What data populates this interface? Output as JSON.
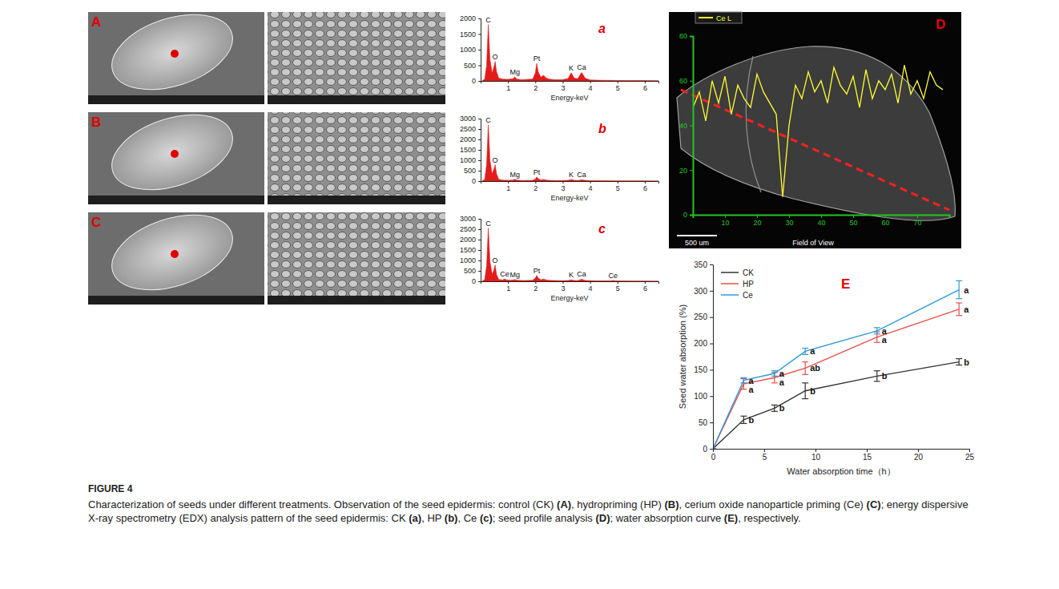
{
  "figure": {
    "label": "FIGURE 4",
    "caption": [
      {
        "text": "Characterization of seeds under different treatments. Observation of the seed epidermis: control (CK) ",
        "bold": false
      },
      {
        "text": "(A)",
        "bold": true
      },
      {
        "text": ", hydropriming (HP) ",
        "bold": false
      },
      {
        "text": "(B)",
        "bold": true
      },
      {
        "text": ", cerium oxide nanoparticle priming (Ce) ",
        "bold": false
      },
      {
        "text": "(C)",
        "bold": true
      },
      {
        "text": "; energy dispersive X-ray spectrometry (EDX) analysis pattern of the seed epidermis: CK ",
        "bold": false
      },
      {
        "text": "(a)",
        "bold": true
      },
      {
        "text": ", HP ",
        "bold": false
      },
      {
        "text": "(b)",
        "bold": true
      },
      {
        "text": ", Ce ",
        "bold": false
      },
      {
        "text": "(c)",
        "bold": true
      },
      {
        "text": "; seed profile analysis ",
        "bold": false
      },
      {
        "text": "(D)",
        "bold": true
      },
      {
        "text": "; water absorption curve ",
        "bold": false
      },
      {
        "text": "(E)",
        "bold": true
      },
      {
        "text": ", respectively.",
        "bold": false
      }
    ]
  },
  "images": [
    {
      "panel": "A"
    },
    {
      "panel": "B"
    },
    {
      "panel": "C"
    }
  ],
  "chart_data": [
    {
      "type": "area",
      "panel": "a",
      "color": "#e31b1b",
      "x_label": "Energy-keV",
      "x": [
        0.05,
        0.15,
        0.22,
        0.28,
        0.34,
        0.42,
        0.48,
        0.53,
        0.58,
        0.66,
        0.8,
        1.0,
        1.18,
        1.25,
        1.32,
        1.5,
        1.9,
        2.0,
        2.05,
        2.1,
        2.2,
        2.3,
        2.4,
        2.5,
        2.7,
        3.0,
        3.2,
        3.31,
        3.42,
        3.55,
        3.69,
        3.82,
        4.0,
        4.5,
        5.0,
        5.5,
        6.0,
        6.5
      ],
      "values": [
        0,
        60,
        500,
        1800,
        700,
        250,
        420,
        620,
        300,
        90,
        60,
        50,
        70,
        130,
        60,
        40,
        60,
        250,
        560,
        300,
        120,
        180,
        90,
        60,
        40,
        40,
        80,
        260,
        90,
        70,
        270,
        90,
        30,
        20,
        15,
        10,
        10,
        5
      ],
      "xlim": [
        0,
        6.5
      ],
      "xticks": [
        1,
        2,
        3,
        4,
        5,
        6
      ],
      "ylim": [
        0,
        2000
      ],
      "yticks": [
        0,
        500,
        1000,
        1500,
        2000
      ],
      "annotations": [
        {
          "text": "C",
          "x": 0.28,
          "y": 1800
        },
        {
          "text": "O",
          "x": 0.53,
          "y": 620
        },
        {
          "text": "Mg",
          "x": 1.25,
          "y": 130
        },
        {
          "text": "Pt",
          "x": 2.05,
          "y": 560
        },
        {
          "text": "K",
          "x": 3.31,
          "y": 260
        },
        {
          "text": "Ca",
          "x": 3.69,
          "y": 270
        }
      ]
    },
    {
      "type": "area",
      "panel": "b",
      "color": "#e31b1b",
      "x_label": "Energy-keV",
      "x": [
        0.05,
        0.15,
        0.22,
        0.28,
        0.34,
        0.42,
        0.48,
        0.53,
        0.58,
        0.66,
        0.8,
        1.0,
        1.18,
        1.25,
        1.32,
        1.5,
        1.9,
        2.0,
        2.05,
        2.1,
        2.2,
        2.3,
        2.4,
        2.5,
        2.7,
        3.0,
        3.2,
        3.31,
        3.42,
        3.55,
        3.69,
        3.82,
        4.0,
        4.5,
        5.0,
        5.5,
        6.0,
        6.5
      ],
      "values": [
        0,
        80,
        800,
        2700,
        1000,
        350,
        550,
        780,
        350,
        90,
        50,
        40,
        50,
        90,
        50,
        30,
        40,
        100,
        200,
        120,
        60,
        80,
        50,
        40,
        30,
        30,
        40,
        80,
        40,
        30,
        60,
        40,
        20,
        15,
        10,
        8,
        6,
        4
      ],
      "xlim": [
        0,
        6.5
      ],
      "xticks": [
        1,
        2,
        3,
        4,
        5,
        6
      ],
      "ylim": [
        0,
        3000
      ],
      "yticks": [
        0,
        500,
        1000,
        1500,
        2000,
        2500,
        3000
      ],
      "annotations": [
        {
          "text": "C",
          "x": 0.28,
          "y": 2700
        },
        {
          "text": "O",
          "x": 0.53,
          "y": 780
        },
        {
          "text": "Mg",
          "x": 1.25,
          "y": 90
        },
        {
          "text": "Pt",
          "x": 2.05,
          "y": 200
        },
        {
          "text": "K",
          "x": 3.31,
          "y": 80
        },
        {
          "text": "Ca",
          "x": 3.69,
          "y": 60
        }
      ]
    },
    {
      "type": "area",
      "panel": "c",
      "color": "#e31b1b",
      "x_label": "Energy-keV",
      "x": [
        0.05,
        0.15,
        0.22,
        0.28,
        0.34,
        0.42,
        0.48,
        0.53,
        0.58,
        0.66,
        0.8,
        0.88,
        0.96,
        1.1,
        1.25,
        1.35,
        1.6,
        1.9,
        2.0,
        2.05,
        2.1,
        2.2,
        2.3,
        2.4,
        2.6,
        3.0,
        3.2,
        3.31,
        3.42,
        3.55,
        3.69,
        3.82,
        4.2,
        4.75,
        4.84,
        4.93,
        5.5,
        6.0,
        6.5
      ],
      "values": [
        0,
        80,
        750,
        2550,
        950,
        330,
        520,
        780,
        330,
        90,
        60,
        110,
        60,
        45,
        80,
        45,
        35,
        50,
        150,
        280,
        160,
        70,
        110,
        60,
        40,
        30,
        35,
        70,
        40,
        30,
        100,
        40,
        20,
        15,
        35,
        15,
        8,
        6,
        4
      ],
      "xlim": [
        0,
        6.5
      ],
      "xticks": [
        1,
        2,
        3,
        4,
        5,
        6
      ],
      "ylim": [
        0,
        3000
      ],
      "yticks": [
        0,
        500,
        1000,
        1500,
        2000,
        2500,
        3000
      ],
      "annotations": [
        {
          "text": "C",
          "x": 0.28,
          "y": 2550
        },
        {
          "text": "O",
          "x": 0.53,
          "y": 780
        },
        {
          "text": "Ce",
          "x": 0.88,
          "y": 110
        },
        {
          "text": "Mg",
          "x": 1.25,
          "y": 80
        },
        {
          "text": "Pt",
          "x": 2.05,
          "y": 280
        },
        {
          "text": "K",
          "x": 3.31,
          "y": 70
        },
        {
          "text": "Ca",
          "x": 3.69,
          "y": 100
        },
        {
          "text": "Ce",
          "x": 4.84,
          "y": 35
        }
      ]
    },
    {
      "type": "line",
      "panel": "D",
      "legend": "upper left",
      "scale_bar": "500 um",
      "field_label": "Field of View",
      "x": [
        0,
        2,
        4,
        6,
        8,
        10,
        12,
        14,
        16,
        18,
        20,
        22,
        24,
        26,
        28,
        30,
        32,
        34,
        36,
        38,
        40,
        42,
        44,
        46,
        48,
        50,
        52,
        54,
        56,
        58,
        60,
        62,
        64,
        66,
        68,
        70,
        72,
        74,
        76,
        78
      ],
      "series": [
        {
          "name": "Ce L",
          "color": "#ffff33",
          "values": [
            48,
            55,
            42,
            60,
            50,
            62,
            45,
            58,
            52,
            48,
            63,
            55,
            50,
            45,
            8,
            40,
            58,
            52,
            64,
            55,
            60,
            50,
            66,
            58,
            54,
            62,
            48,
            65,
            52,
            60,
            56,
            63,
            50,
            67,
            54,
            60,
            52,
            64,
            58,
            56
          ]
        }
      ],
      "xlim": [
        0,
        80
      ],
      "xticks": [
        10,
        20,
        30,
        40,
        50,
        60,
        70
      ],
      "ylim": [
        0,
        80
      ],
      "yticks": [
        0,
        20,
        40,
        60,
        80
      ]
    },
    {
      "type": "line",
      "panel": "E",
      "legend": "upper left",
      "x_label": "Water absorption time（h）",
      "y_label": "Seed water absorption (%)",
      "x": [
        0,
        3,
        6,
        9,
        16,
        24
      ],
      "series": [
        {
          "name": "CK",
          "color": "#333333",
          "values": [
            0,
            55,
            77,
            110,
            138,
            165
          ],
          "errors": [
            0,
            7,
            6,
            15,
            10,
            6
          ],
          "point_labels": [
            null,
            "b",
            "b",
            "b",
            "b",
            "b"
          ]
        },
        {
          "name": "HP",
          "color": "#e8504a",
          "values": [
            0,
            123,
            135,
            153,
            212,
            265
          ],
          "errors": [
            0,
            10,
            10,
            12,
            10,
            12
          ],
          "point_labels": [
            null,
            "a",
            "a",
            "ab",
            "a",
            "a"
          ]
        },
        {
          "name": "Ce",
          "color": "#2f9ad8",
          "values": [
            0,
            130,
            143,
            185,
            224,
            302
          ],
          "errors": [
            0,
            5,
            5,
            6,
            6,
            17
          ],
          "point_labels": [
            null,
            "a",
            "a",
            "a",
            "a",
            "a"
          ]
        }
      ],
      "xlim": [
        0,
        25
      ],
      "xticks": [
        0,
        5,
        10,
        15,
        20,
        25
      ],
      "ylim": [
        0,
        350
      ],
      "yticks": [
        0,
        50,
        100,
        150,
        200,
        250,
        300,
        350
      ]
    }
  ]
}
